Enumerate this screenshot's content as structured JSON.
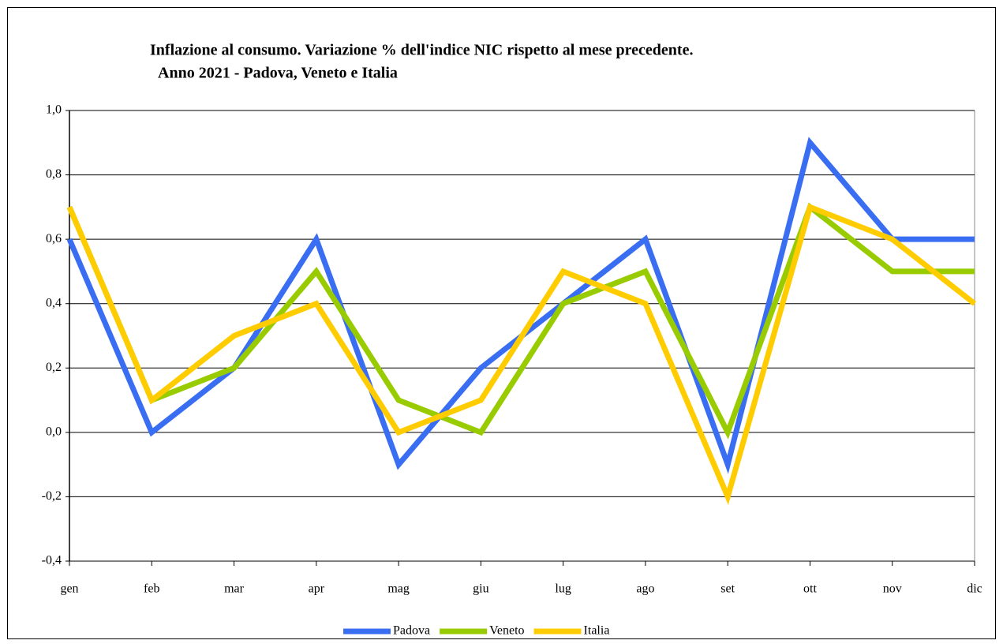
{
  "chart_data": {
    "type": "line",
    "title": [
      "Inflazione al consumo. Variazione % dell'indice NIC rispetto al mese precedente.",
      "Anno 2021 - Padova, Veneto e Italia"
    ],
    "categories": [
      "gen",
      "feb",
      "mar",
      "apr",
      "mag",
      "giu",
      "lug",
      "ago",
      "set",
      "ott",
      "nov",
      "dic"
    ],
    "series": [
      {
        "name": "Padova",
        "color": "#3a6ef2",
        "values": [
          0.6,
          0.0,
          0.2,
          0.6,
          -0.1,
          0.2,
          0.4,
          0.6,
          -0.1,
          0.9,
          0.6,
          0.6
        ]
      },
      {
        "name": "Veneto",
        "color": "#99cc00",
        "values": [
          0.7,
          0.1,
          0.2,
          0.5,
          0.1,
          0.0,
          0.4,
          0.5,
          0.0,
          0.7,
          0.5,
          0.5
        ]
      },
      {
        "name": "Italia",
        "color": "#ffcc00",
        "values": [
          0.7,
          0.1,
          0.3,
          0.4,
          0.0,
          0.1,
          0.5,
          0.4,
          -0.2,
          0.7,
          0.6,
          0.4
        ]
      }
    ],
    "ylim": [
      -0.4,
      1.0
    ],
    "yticks": [
      {
        "value": -0.4,
        "label": "-0,4"
      },
      {
        "value": -0.2,
        "label": "-0,2"
      },
      {
        "value": 0,
        "label": "0,0"
      },
      {
        "value": 0.2,
        "label": "0,2"
      },
      {
        "value": 0.4,
        "label": "0,4"
      },
      {
        "value": 0.6,
        "label": "0,6"
      },
      {
        "value": 0.8,
        "label": "0,8"
      },
      {
        "value": 1.0,
        "label": "1,0"
      }
    ],
    "grid": true,
    "legend": "bottom"
  }
}
